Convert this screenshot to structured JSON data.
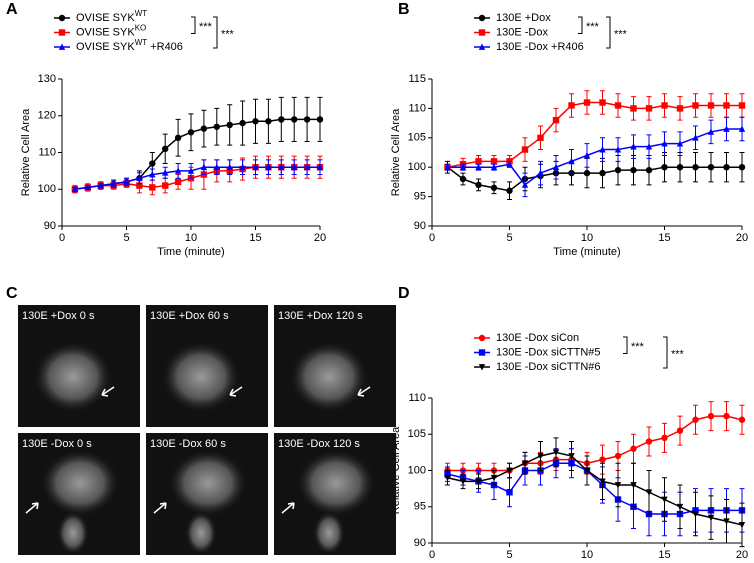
{
  "chart_data": [
    {
      "type": "line",
      "panel_label": "A",
      "xlabel": "Time (minute)",
      "ylabel": "Relative Cell Area",
      "xlim": [
        0,
        20
      ],
      "ylim": [
        90,
        130
      ],
      "xticks": [
        0,
        5,
        10,
        15,
        20
      ],
      "yticks": [
        90,
        100,
        110,
        120,
        130
      ],
      "x": [
        1,
        2,
        3,
        4,
        5,
        6,
        7,
        8,
        9,
        10,
        11,
        12,
        13,
        14,
        15,
        16,
        17,
        18,
        19,
        20
      ],
      "series": [
        {
          "name": "OVISE SYK",
          "superscript": "WT",
          "color": "#000000",
          "marker": "circle",
          "values": [
            100,
            100.5,
            101,
            101.5,
            102,
            103,
            107,
            111,
            114,
            115.5,
            116.5,
            117,
            117.5,
            118,
            118.5,
            118.5,
            119,
            119,
            119,
            119
          ],
          "errors": [
            0.5,
            0.5,
            1,
            1,
            1,
            2,
            3,
            4,
            5,
            5,
            5,
            5,
            5.5,
            6,
            6,
            6,
            6,
            6,
            6,
            6
          ]
        },
        {
          "name": "OVISE SYK",
          "superscript": "KO",
          "color": "#ff0000",
          "marker": "square",
          "values": [
            100,
            100.5,
            101,
            101,
            101.5,
            101,
            100.5,
            101,
            102,
            103,
            104,
            105,
            105,
            105.5,
            106,
            106,
            106,
            106,
            106,
            106
          ],
          "errors": [
            1,
            1,
            1,
            1,
            1,
            2,
            2,
            2,
            2,
            3,
            4,
            3,
            3,
            3,
            3,
            3,
            3,
            3,
            3,
            3
          ]
        },
        {
          "name": "OVISE SYK",
          "superscript": "WT",
          "suffix": " +R406",
          "color": "#0000ff",
          "marker": "triangle",
          "values": [
            100,
            100.5,
            101,
            101.5,
            102,
            103,
            104,
            104.5,
            105,
            105,
            106,
            106,
            106,
            106,
            106,
            106,
            106,
            106,
            106,
            106
          ],
          "errors": [
            0.5,
            0.5,
            0.5,
            1,
            1,
            1.5,
            1.5,
            1.5,
            2,
            2,
            2,
            2,
            2,
            2,
            2,
            2,
            2,
            2,
            2,
            2
          ]
        }
      ],
      "annotations": [
        "***",
        "***"
      ]
    },
    {
      "type": "line",
      "panel_label": "B",
      "xlabel": "Time (minute)",
      "ylabel": "Relative Cell Area",
      "xlim": [
        0,
        20
      ],
      "ylim": [
        90,
        115
      ],
      "xticks": [
        0,
        5,
        10,
        15,
        20
      ],
      "yticks": [
        90,
        95,
        100,
        105,
        110,
        115
      ],
      "x": [
        1,
        2,
        3,
        4,
        5,
        6,
        7,
        8,
        9,
        10,
        11,
        12,
        13,
        14,
        15,
        16,
        17,
        18,
        19,
        20
      ],
      "series": [
        {
          "name": "130E +Dox",
          "color": "#000000",
          "marker": "circle",
          "values": [
            100,
            98,
            97,
            96.5,
            96,
            98,
            98.5,
            99,
            99,
            99,
            99,
            99.5,
            99.5,
            99.5,
            100,
            100,
            100,
            100,
            100,
            100
          ],
          "errors": [
            1,
            1,
            1,
            1,
            1.5,
            2,
            2,
            2,
            2,
            2.5,
            2.5,
            2.5,
            2.5,
            2.5,
            2.5,
            2.5,
            2.5,
            2.5,
            2.5,
            2.5
          ]
        },
        {
          "name": "130E -Dox",
          "color": "#ff0000",
          "marker": "square",
          "values": [
            100,
            100.5,
            101,
            101,
            101,
            103,
            105,
            108,
            110.5,
            111,
            111,
            110.5,
            110,
            110,
            110.5,
            110,
            110.5,
            110.5,
            110.5,
            110.5
          ],
          "errors": [
            0.5,
            1,
            1,
            1,
            1,
            2,
            2,
            2,
            2,
            2,
            2,
            2,
            2,
            2,
            2,
            2,
            2,
            2,
            2,
            2
          ]
        },
        {
          "name": "130E -Dox +R406",
          "color": "#0000ff",
          "marker": "triangle",
          "values": [
            100,
            100,
            100,
            100,
            100.5,
            97,
            99,
            100,
            101,
            102,
            103,
            103,
            103.5,
            103.5,
            104,
            104,
            105,
            106,
            106.5,
            106.5
          ],
          "errors": [
            0.5,
            0.5,
            0.5,
            0.5,
            0.5,
            2,
            2,
            2,
            2,
            2,
            2,
            2,
            2,
            2,
            2,
            2,
            2,
            2,
            2,
            2
          ]
        }
      ],
      "annotations": [
        "***",
        "***"
      ]
    },
    {
      "type": "line",
      "panel_label": "D",
      "xlabel": "Time (minute)",
      "ylabel": "Relative Cell Area",
      "xlim": [
        0,
        20
      ],
      "ylim": [
        90,
        110
      ],
      "xticks": [
        0,
        5,
        10,
        15,
        20
      ],
      "yticks": [
        90,
        95,
        100,
        105,
        110
      ],
      "x": [
        1,
        2,
        3,
        4,
        5,
        6,
        7,
        8,
        9,
        10,
        11,
        12,
        13,
        14,
        15,
        16,
        17,
        18,
        19,
        20
      ],
      "series": [
        {
          "name": "130E -Dox siCon",
          "color": "#ff0000",
          "marker": "circle",
          "values": [
            100,
            100,
            100,
            100,
            100,
            101,
            101,
            101.5,
            101.5,
            101,
            101.5,
            102,
            103,
            104,
            104.5,
            105.5,
            107,
            107.5,
            107.5,
            107
          ],
          "errors": [
            1,
            1,
            1,
            1,
            1,
            1.5,
            1.5,
            1.5,
            1.5,
            1.5,
            2,
            2,
            2,
            2,
            2,
            2,
            2,
            2,
            2,
            2
          ]
        },
        {
          "name": "130E -Dox siCTTN#5",
          "color": "#0000ff",
          "marker": "square",
          "values": [
            99.5,
            99,
            98.5,
            98,
            97,
            100,
            100,
            101,
            101,
            100,
            98,
            96,
            95,
            94,
            94,
            94,
            94.5,
            94.5,
            94.5,
            94.5
          ],
          "errors": [
            1,
            1,
            1.5,
            2,
            2,
            2,
            2,
            2,
            2,
            2,
            2.5,
            3,
            3,
            3,
            3,
            3,
            3,
            3,
            3,
            3
          ]
        },
        {
          "name": "130E -Dox siCTTN#6",
          "color": "#000000",
          "marker": "triangle-down",
          "values": [
            99,
            98.5,
            98.5,
            99,
            100,
            101,
            102,
            102.5,
            102,
            100,
            98.5,
            98,
            98,
            97,
            96,
            95,
            94,
            93.5,
            93,
            92.5
          ],
          "errors": [
            1,
            1,
            1,
            1,
            1,
            1.5,
            2,
            2,
            2,
            2,
            2.5,
            3,
            3,
            3,
            3,
            3,
            3,
            3,
            3,
            3
          ]
        }
      ],
      "annotations": [
        "***",
        "***"
      ]
    }
  ],
  "panel_c": {
    "label": "C",
    "images": [
      {
        "caption": "130E +Dox 0 s"
      },
      {
        "caption": "130E +Dox 60 s"
      },
      {
        "caption": "130E +Dox 120 s"
      },
      {
        "caption": "130E -Dox 0 s"
      },
      {
        "caption": "130E -Dox 60 s"
      },
      {
        "caption": "130E -Dox 120 s"
      }
    ]
  }
}
